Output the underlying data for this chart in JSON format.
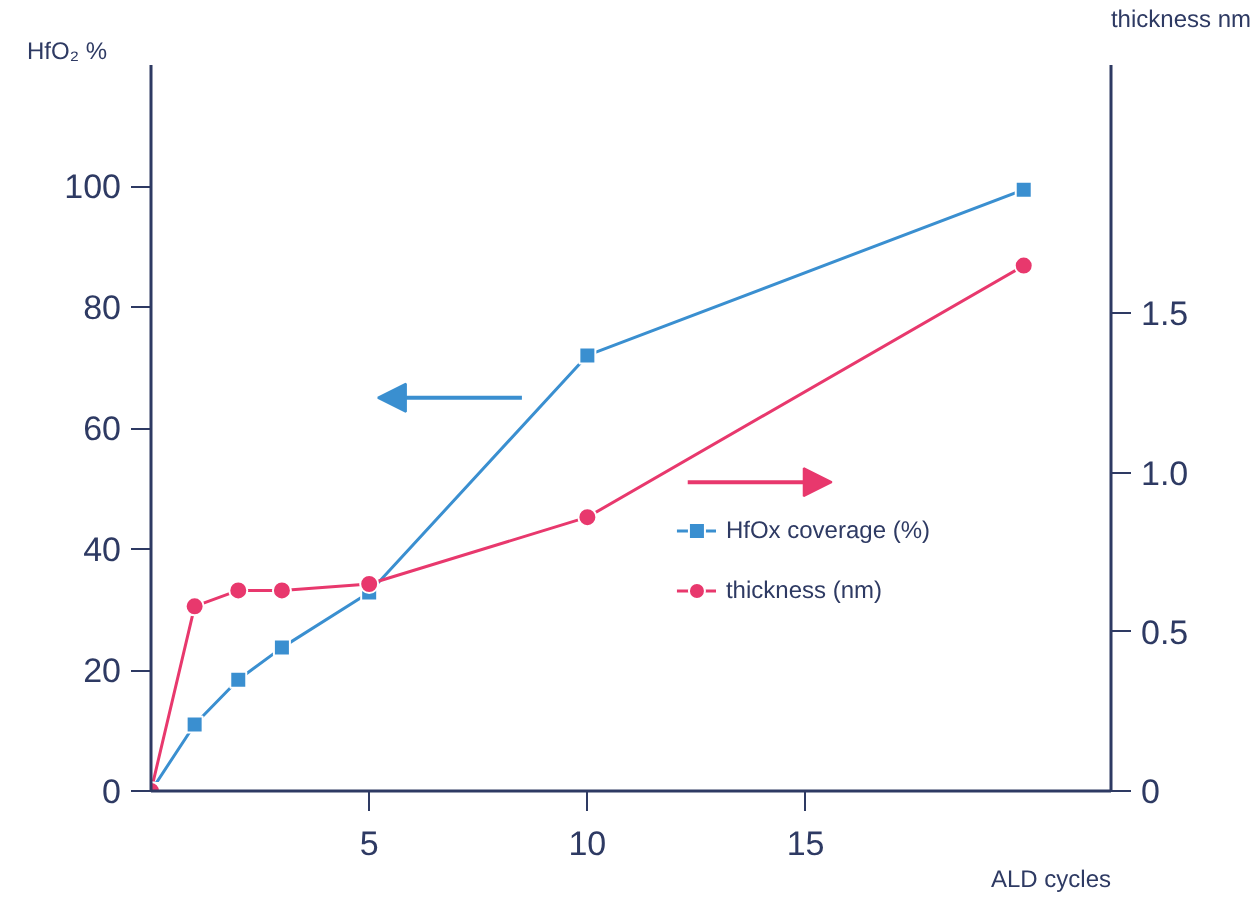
{
  "chart_data": {
    "type": "line",
    "xlabel": "ALD cycles",
    "ylabel": "HfO₂\n%",
    "y2label": "thickness\nnm",
    "xlim": [
      0,
      22
    ],
    "xticks": [
      5,
      10,
      15
    ],
    "ylim": [
      0,
      120
    ],
    "yticks": [
      0,
      20,
      40,
      60,
      80,
      100
    ],
    "y2lim": [
      0,
      2.28
    ],
    "y2ticks": [
      0,
      0.5,
      {
        "value": 1.0,
        "label": "1.0"
      },
      1.5
    ],
    "series": [
      {
        "name": "HfOx coverage (%)",
        "color": "#3a8fd0",
        "marker": "square",
        "x": [
          0,
          1,
          2,
          3,
          5,
          10,
          20
        ],
        "values": [
          0,
          11,
          18.4,
          23.7,
          32.8,
          72,
          99.4
        ]
      },
      {
        "name": "thickness (nm)",
        "color": "#e8386d",
        "marker": "circle",
        "axis": "y2",
        "x": [
          0,
          1,
          2,
          3,
          5,
          10,
          20
        ],
        "values": [
          0,
          0.58,
          0.63,
          0.63,
          0.65,
          0.86,
          1.65
        ]
      }
    ],
    "grid": false,
    "legend": "bottom right",
    "line_style": "solid"
  }
}
